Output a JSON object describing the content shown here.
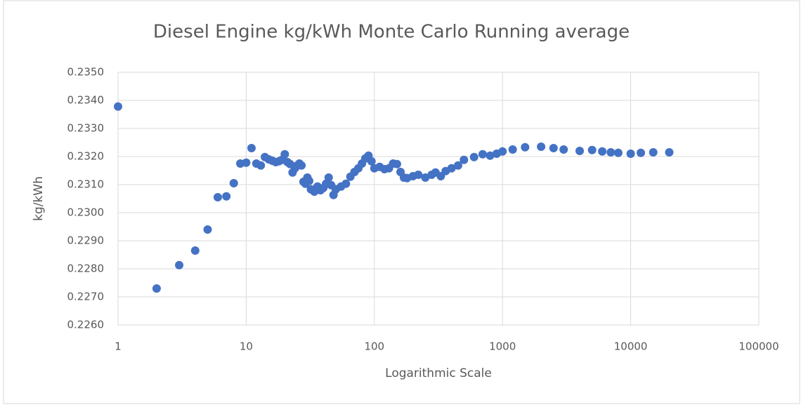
{
  "chart_data": {
    "type": "scatter",
    "title": "Diesel Engine kg/kWh Monte Carlo Running average",
    "x_label": "Logarithmic Scale",
    "y_label": "kg/kWh",
    "x_log": true,
    "grid": true,
    "series": [
      {
        "name": "kg/kWh",
        "color": "#4472c4",
        "x": [
          1,
          2,
          3,
          4,
          5,
          6,
          7,
          8,
          9,
          10,
          11,
          12,
          13,
          14,
          15,
          16,
          17,
          18,
          19,
          20,
          21,
          22,
          23,
          24,
          25,
          26,
          27,
          28,
          29,
          30,
          31,
          32,
          34,
          36,
          38,
          40,
          42,
          44,
          46,
          48,
          50,
          55,
          60,
          65,
          70,
          75,
          80,
          85,
          90,
          95,
          100,
          110,
          120,
          130,
          140,
          150,
          160,
          170,
          180,
          200,
          220,
          250,
          280,
          300,
          330,
          360,
          400,
          450,
          500,
          600,
          700,
          800,
          900,
          1000,
          1200,
          1500,
          2000,
          2500,
          3000,
          4000,
          5000,
          6000,
          7000,
          8000,
          10000,
          12000,
          15000,
          20000
        ],
        "values": [
          0.23378,
          0.2273,
          0.22813,
          0.22865,
          0.2294,
          0.23055,
          0.23058,
          0.23105,
          0.23175,
          0.23178,
          0.2323,
          0.23175,
          0.23168,
          0.23198,
          0.2319,
          0.23185,
          0.2318,
          0.23183,
          0.23188,
          0.23208,
          0.2318,
          0.23173,
          0.23143,
          0.23158,
          0.23168,
          0.23175,
          0.23168,
          0.2311,
          0.23103,
          0.23125,
          0.23113,
          0.23083,
          0.23075,
          0.23093,
          0.2308,
          0.23088,
          0.23103,
          0.23125,
          0.23098,
          0.23063,
          0.23083,
          0.23093,
          0.23103,
          0.23128,
          0.23145,
          0.23158,
          0.23175,
          0.23193,
          0.23203,
          0.23183,
          0.23158,
          0.23163,
          0.23155,
          0.23158,
          0.23175,
          0.23173,
          0.23145,
          0.23125,
          0.23123,
          0.2313,
          0.23135,
          0.23125,
          0.23135,
          0.23143,
          0.2313,
          0.23148,
          0.23158,
          0.23168,
          0.23188,
          0.23198,
          0.23208,
          0.23203,
          0.2321,
          0.23218,
          0.23225,
          0.23233,
          0.23235,
          0.2323,
          0.23225,
          0.2322,
          0.23223,
          0.23218,
          0.23215,
          0.23213,
          0.2321,
          0.23213,
          0.23215,
          0.23215
        ]
      }
    ],
    "xlim": [
      1,
      100000
    ],
    "xticks": [
      1,
      10,
      100,
      1000,
      10000,
      100000
    ],
    "ylim": [
      0.226,
      0.235
    ],
    "yticks": [
      {
        "value": 0.226,
        "label": "0.2260"
      },
      {
        "value": 0.227,
        "label": "0.2270"
      },
      {
        "value": 0.228,
        "label": "0.2280"
      },
      {
        "value": 0.229,
        "label": "0.2290"
      },
      {
        "value": 0.23,
        "label": "0.2300"
      },
      {
        "value": 0.231,
        "label": "0.2310"
      },
      {
        "value": 0.232,
        "label": "0.2320"
      },
      {
        "value": 0.233,
        "label": "0.2330"
      },
      {
        "value": 0.234,
        "label": "0.2340"
      },
      {
        "value": 0.235,
        "label": "0.2350"
      }
    ]
  }
}
